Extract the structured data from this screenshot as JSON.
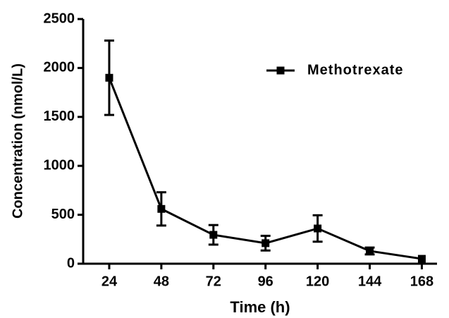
{
  "chart_data": {
    "type": "line",
    "x_label": "Time (h)",
    "y_label": "Concentration (nmol/L)",
    "x": [
      24,
      48,
      72,
      96,
      120,
      144,
      168
    ],
    "series": [
      {
        "name": "Methotrexate",
        "color": "#000000",
        "values": [
          1900,
          560,
          295,
          210,
          360,
          130,
          50
        ],
        "errors": [
          380,
          170,
          100,
          75,
          135,
          35,
          0
        ]
      }
    ],
    "xlim": [
      12,
      175
    ],
    "xticks": [
      24,
      48,
      72,
      96,
      120,
      144,
      168
    ],
    "ylim": [
      0,
      2500
    ],
    "yticks": [
      0,
      500,
      1000,
      1500,
      2000,
      2500
    ],
    "legend": "upper right",
    "grid": false
  }
}
